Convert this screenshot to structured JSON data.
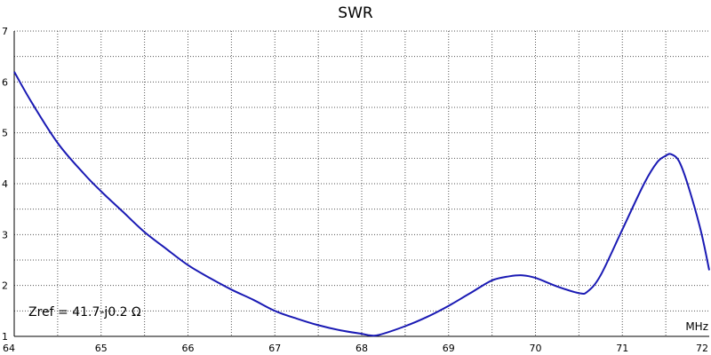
{
  "chart_data": {
    "type": "line",
    "title": "SWR",
    "xlabel": "MHz",
    "ylabel": "",
    "xlim": [
      64,
      72
    ],
    "ylim": [
      1,
      7
    ],
    "x_ticks": [
      "64",
      "65",
      "66",
      "67",
      "68",
      "69",
      "70",
      "71",
      "72"
    ],
    "y_ticks": [
      "1",
      "2",
      "3",
      "4",
      "5",
      "6",
      "7"
    ],
    "grid": true,
    "annotation": "Zref = 41.7-j0.2 Ω",
    "series": [
      {
        "color": "#1a1ab4",
        "x": [
          64.0,
          64.2,
          64.5,
          64.8,
          65.0,
          65.25,
          65.5,
          65.75,
          66.0,
          66.25,
          66.5,
          66.75,
          67.0,
          67.25,
          67.5,
          67.75,
          68.0,
          68.1,
          68.2,
          68.5,
          68.75,
          69.0,
          69.25,
          69.5,
          69.7,
          69.85,
          70.0,
          70.25,
          70.5,
          70.6,
          70.75,
          71.0,
          71.25,
          71.4,
          71.5,
          71.56,
          71.65,
          71.75,
          71.9,
          72.0
        ],
        "y": [
          6.2,
          5.6,
          4.8,
          4.2,
          3.85,
          3.45,
          3.05,
          2.72,
          2.4,
          2.15,
          1.92,
          1.72,
          1.5,
          1.35,
          1.22,
          1.12,
          1.05,
          1.02,
          1.03,
          1.2,
          1.38,
          1.6,
          1.85,
          2.1,
          2.18,
          2.2,
          2.15,
          1.98,
          1.85,
          1.88,
          2.2,
          3.1,
          4.0,
          4.42,
          4.55,
          4.58,
          4.45,
          4.0,
          3.1,
          2.3
        ]
      }
    ]
  }
}
